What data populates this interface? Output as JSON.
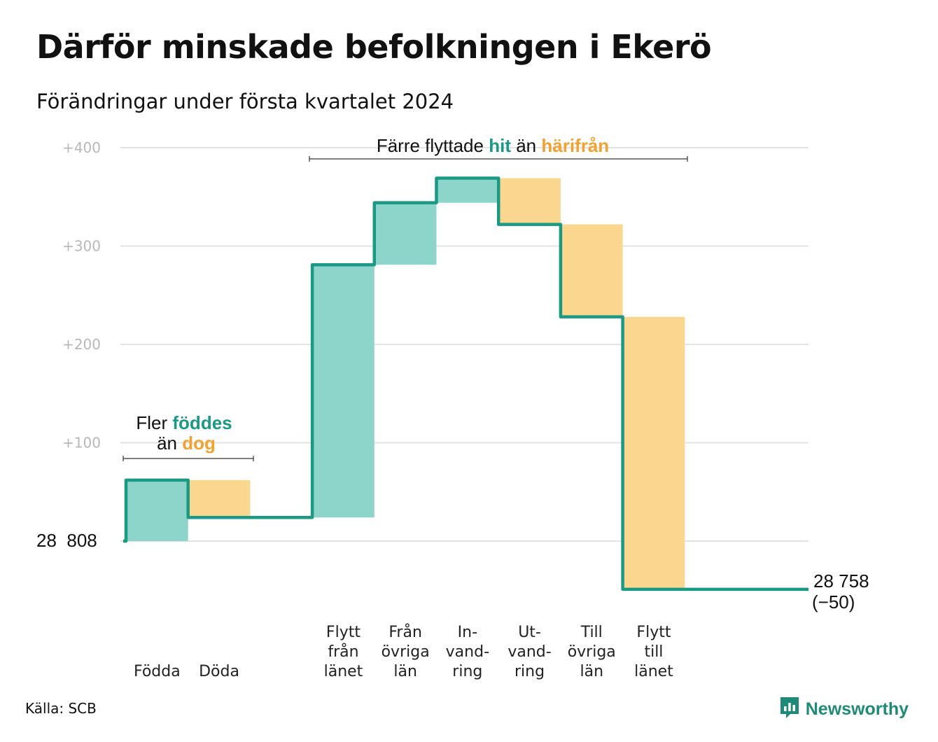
{
  "header": {
    "title": "Därför minskade befolkningen i Ekerö",
    "subtitle": "Förändringar under första kvartalet 2024"
  },
  "annotations": {
    "births": {
      "line1_prefix": "Fler",
      "line1_highlight": "föddes",
      "line2_prefix": "än",
      "line2_highlight": "dog"
    },
    "moves": {
      "prefix": "Färre flyttade",
      "highlight_in": "hit",
      "middle": "än",
      "highlight_out": "härifrån"
    }
  },
  "start_label": "28  808",
  "end_label": {
    "line1": "28 758",
    "line2": "(−50)"
  },
  "footer": {
    "source": "Källa: SCB",
    "brand": "Newsworthy"
  },
  "colors": {
    "increase": "#8dd4cb",
    "decrease": "#fad68f",
    "line": "#1a9985",
    "grid": "#e3e3e3",
    "accent_in": "#1a9985",
    "accent_out": "#f2a230"
  },
  "chart_data": {
    "type": "waterfall",
    "baseline": 28808,
    "end_value": 28758,
    "net_change": -50,
    "y_ticks": [
      "+400",
      "+300",
      "+200",
      "+100"
    ],
    "y_tick_values": [
      400,
      300,
      200,
      100
    ],
    "ylim": [
      -60,
      400
    ],
    "categories": [
      {
        "label": [
          "Födda"
        ],
        "change": 62,
        "kind": "increase"
      },
      {
        "label": [
          "Döda"
        ],
        "change": -38,
        "kind": "decrease"
      },
      {
        "label": [],
        "change": 0,
        "kind": "none"
      },
      {
        "label": [
          "Flytt",
          "från",
          "länet"
        ],
        "change": 257,
        "kind": "increase"
      },
      {
        "label": [
          "Från",
          "övriga",
          "län"
        ],
        "change": 63,
        "kind": "increase"
      },
      {
        "label": [
          "In-",
          "vand-",
          "ring"
        ],
        "change": 25,
        "kind": "increase"
      },
      {
        "label": [
          "Ut-",
          "vand-",
          "ring"
        ],
        "change": -47,
        "kind": "decrease"
      },
      {
        "label": [
          "Till",
          "övriga",
          "län"
        ],
        "change": -94,
        "kind": "decrease"
      },
      {
        "label": [
          "Flytt",
          "till",
          "länet"
        ],
        "change": -277,
        "kind": "decrease"
      }
    ]
  }
}
